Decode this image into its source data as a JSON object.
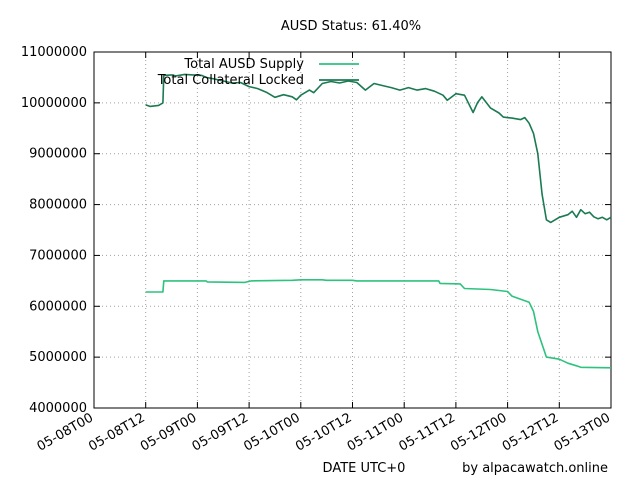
{
  "chart_data": {
    "type": "line",
    "title": "AUSD Status: 61.40%",
    "xlabel": "DATE UTC+0",
    "ylabel": "",
    "credit": "by alpacawatch.online",
    "grid": true,
    "legend_position": "top-left",
    "xlim": [
      "05-08T00",
      "05-13T00"
    ],
    "ylim": [
      4000000,
      11000000
    ],
    "x_unit": "hours since 05-08T00",
    "x_ticks": [
      {
        "label": "05-08T00",
        "x": 0
      },
      {
        "label": "05-08T12",
        "x": 12
      },
      {
        "label": "05-09T00",
        "x": 24
      },
      {
        "label": "05-09T12",
        "x": 36
      },
      {
        "label": "05-10T00",
        "x": 48
      },
      {
        "label": "05-10T12",
        "x": 60
      },
      {
        "label": "05-11T00",
        "x": 72
      },
      {
        "label": "05-11T12",
        "x": 84
      },
      {
        "label": "05-12T00",
        "x": 96
      },
      {
        "label": "05-12T12",
        "x": 108
      },
      {
        "label": "05-13T00",
        "x": 120
      }
    ],
    "y_ticks": [
      {
        "label": "4000000",
        "y": 4000000
      },
      {
        "label": "5000000",
        "y": 5000000
      },
      {
        "label": "6000000",
        "y": 6000000
      },
      {
        "label": "7000000",
        "y": 7000000
      },
      {
        "label": "8000000",
        "y": 8000000
      },
      {
        "label": "9000000",
        "y": 9000000
      },
      {
        "label": "10000000",
        "y": 10000000
      },
      {
        "label": "11000000",
        "y": 11000000
      }
    ],
    "series": [
      {
        "name": "Total AUSD Supply",
        "color": "#2ec27e",
        "points": [
          [
            12,
            6280000
          ],
          [
            16,
            6280000
          ],
          [
            16.2,
            6500000
          ],
          [
            26,
            6500000
          ],
          [
            26.3,
            6480000
          ],
          [
            35,
            6470000
          ],
          [
            36.5,
            6500000
          ],
          [
            46,
            6510000
          ],
          [
            48,
            6520000
          ],
          [
            53,
            6520000
          ],
          [
            54,
            6510000
          ],
          [
            60,
            6510000
          ],
          [
            61,
            6500000
          ],
          [
            72,
            6500000
          ],
          [
            80,
            6500000
          ],
          [
            80.3,
            6450000
          ],
          [
            85,
            6440000
          ],
          [
            86,
            6350000
          ],
          [
            92,
            6330000
          ],
          [
            96,
            6290000
          ],
          [
            97,
            6200000
          ],
          [
            101,
            6080000
          ],
          [
            102,
            5900000
          ],
          [
            103,
            5500000
          ],
          [
            104,
            5250000
          ],
          [
            105,
            5000000
          ],
          [
            108,
            4960000
          ],
          [
            110,
            4880000
          ],
          [
            112,
            4830000
          ],
          [
            113,
            4800000
          ],
          [
            120,
            4790000
          ]
        ]
      },
      {
        "name": "Total Collateral Locked",
        "color": "#1b7a52",
        "points": [
          [
            12,
            9960000
          ],
          [
            13,
            9930000
          ],
          [
            15,
            9950000
          ],
          [
            16,
            10000000
          ],
          [
            16.2,
            10540000
          ],
          [
            18,
            10550000
          ],
          [
            19,
            10530000
          ],
          [
            21,
            10560000
          ],
          [
            23,
            10550000
          ],
          [
            25,
            10540000
          ],
          [
            26,
            10500000
          ],
          [
            28,
            10470000
          ],
          [
            30,
            10430000
          ],
          [
            32,
            10390000
          ],
          [
            34,
            10400000
          ],
          [
            36,
            10320000
          ],
          [
            38,
            10280000
          ],
          [
            40,
            10210000
          ],
          [
            42,
            10110000
          ],
          [
            44,
            10160000
          ],
          [
            46,
            10120000
          ],
          [
            47,
            10060000
          ],
          [
            48,
            10150000
          ],
          [
            50,
            10250000
          ],
          [
            51,
            10200000
          ],
          [
            53,
            10380000
          ],
          [
            55,
            10420000
          ],
          [
            57,
            10390000
          ],
          [
            59,
            10430000
          ],
          [
            61,
            10400000
          ],
          [
            63,
            10250000
          ],
          [
            65,
            10380000
          ],
          [
            67,
            10340000
          ],
          [
            69,
            10300000
          ],
          [
            71,
            10250000
          ],
          [
            73,
            10300000
          ],
          [
            75,
            10250000
          ],
          [
            77,
            10280000
          ],
          [
            79,
            10230000
          ],
          [
            81,
            10150000
          ],
          [
            82,
            10050000
          ],
          [
            84,
            10180000
          ],
          [
            86,
            10150000
          ],
          [
            88,
            9810000
          ],
          [
            89,
            10000000
          ],
          [
            90,
            10120000
          ],
          [
            92,
            9900000
          ],
          [
            94,
            9800000
          ],
          [
            95,
            9720000
          ],
          [
            97,
            9700000
          ],
          [
            99,
            9670000
          ],
          [
            100,
            9710000
          ],
          [
            101,
            9600000
          ],
          [
            102,
            9400000
          ],
          [
            103,
            9000000
          ],
          [
            104,
            8200000
          ],
          [
            105,
            7700000
          ],
          [
            106,
            7650000
          ],
          [
            108,
            7750000
          ],
          [
            110,
            7800000
          ],
          [
            111,
            7870000
          ],
          [
            112,
            7750000
          ],
          [
            113,
            7900000
          ],
          [
            114,
            7820000
          ],
          [
            115,
            7850000
          ],
          [
            116,
            7760000
          ],
          [
            117,
            7720000
          ],
          [
            118,
            7750000
          ],
          [
            119,
            7700000
          ],
          [
            120,
            7750000
          ]
        ]
      }
    ]
  }
}
